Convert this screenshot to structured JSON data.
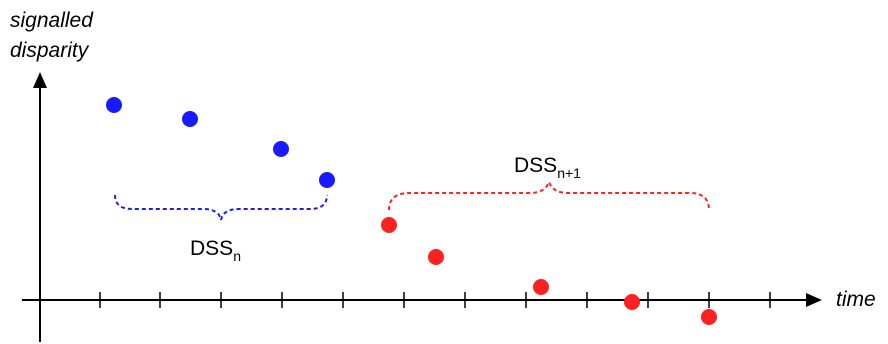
{
  "y_axis_title_line1": "signalled",
  "y_axis_title_line2": "disparity",
  "x_axis_title": "time",
  "groups": [
    {
      "label_main": "DSS",
      "label_sub": "n",
      "color": "#1a1aff"
    },
    {
      "label_main": "DSS",
      "label_sub": "n+1",
      "color": "#ff2020"
    }
  ],
  "colors": {
    "axis": "#000000",
    "blue": "#1a1aff",
    "red": "#ff2020"
  }
}
